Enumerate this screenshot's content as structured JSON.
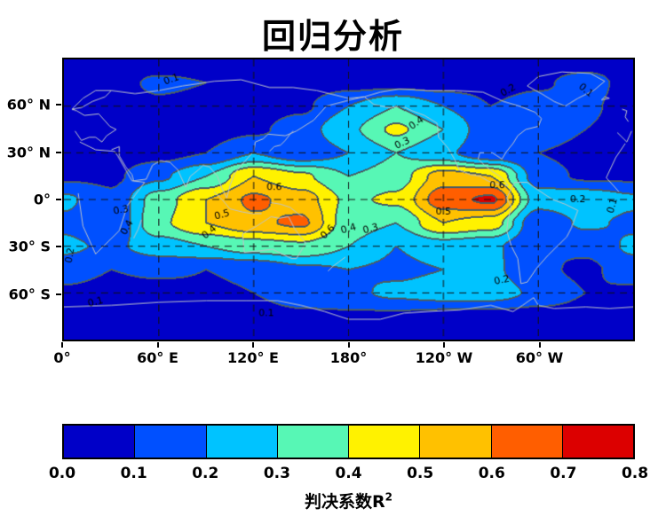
{
  "chart_data": {
    "type": "heatmap",
    "subtype": "filled-contour-map",
    "title": "回归分析",
    "projection": "equirectangular",
    "lon_range": [
      0,
      360
    ],
    "lat_range": [
      -90,
      90
    ],
    "grid_dashed": true,
    "xtick_labels": [
      "0°",
      "60° E",
      "120° E",
      "180°",
      "120° W",
      "60° W"
    ],
    "xtick_lons": [
      0,
      60,
      120,
      180,
      240,
      300
    ],
    "ytick_labels": [
      "60° N",
      "30° N",
      "0°",
      "30° S",
      "60° S"
    ],
    "ytick_lats": [
      60,
      30,
      0,
      -30,
      -60
    ],
    "levels": [
      0,
      0.1,
      0.2,
      0.3,
      0.4,
      0.5,
      0.6,
      0.7,
      0.8
    ],
    "palette": [
      "#0000c8",
      "#0050ff",
      "#00c3ff",
      "#57f7b5",
      "#fff200",
      "#ffc100",
      "#ff5e00",
      "#dc0000"
    ],
    "contour_line_color": "#4b5f64",
    "coastline_color": "#bec3c8",
    "grid": {
      "lons": [
        0,
        30,
        60,
        90,
        120,
        150,
        180,
        210,
        240,
        270,
        300,
        330,
        360
      ],
      "lats": [
        90,
        75,
        60,
        45,
        30,
        15,
        0,
        -15,
        -30,
        -45,
        -60,
        -75,
        -90
      ],
      "values": [
        [
          0.03,
          0.03,
          0.03,
          0.03,
          0.03,
          0.03,
          0.03,
          0.03,
          0.03,
          0.03,
          0.03,
          0.03,
          0.03
        ],
        [
          0.05,
          0.06,
          0.12,
          0.1,
          0.05,
          0.05,
          0.06,
          0.06,
          0.05,
          0.06,
          0.08,
          0.15,
          0.05
        ],
        [
          0.05,
          0.05,
          0.08,
          0.06,
          0.05,
          0.08,
          0.2,
          0.3,
          0.2,
          0.1,
          0.15,
          0.12,
          0.05
        ],
        [
          0.05,
          0.05,
          0.05,
          0.05,
          0.08,
          0.15,
          0.28,
          0.42,
          0.3,
          0.12,
          0.18,
          0.1,
          0.05
        ],
        [
          0.05,
          0.05,
          0.06,
          0.1,
          0.2,
          0.12,
          0.2,
          0.3,
          0.22,
          0.12,
          0.1,
          0.06,
          0.05
        ],
        [
          0.08,
          0.08,
          0.18,
          0.3,
          0.5,
          0.42,
          0.3,
          0.35,
          0.55,
          0.5,
          0.15,
          0.08,
          0.08
        ],
        [
          0.22,
          0.12,
          0.35,
          0.5,
          0.62,
          0.55,
          0.38,
          0.42,
          0.66,
          0.72,
          0.25,
          0.28,
          0.22
        ],
        [
          0.18,
          0.1,
          0.38,
          0.5,
          0.58,
          0.62,
          0.35,
          0.3,
          0.5,
          0.45,
          0.12,
          0.22,
          0.18
        ],
        [
          0.22,
          0.18,
          0.25,
          0.3,
          0.35,
          0.38,
          0.3,
          0.2,
          0.25,
          0.22,
          0.1,
          0.12,
          0.22
        ],
        [
          0.15,
          0.1,
          0.12,
          0.1,
          0.12,
          0.18,
          0.2,
          0.18,
          0.2,
          0.22,
          0.12,
          0.08,
          0.15
        ],
        [
          0.08,
          0.06,
          0.06,
          0.08,
          0.1,
          0.15,
          0.18,
          0.22,
          0.25,
          0.25,
          0.18,
          0.1,
          0.08
        ],
        [
          0.05,
          0.05,
          0.05,
          0.05,
          0.06,
          0.08,
          0.08,
          0.08,
          0.06,
          0.06,
          0.05,
          0.05,
          0.05
        ],
        [
          0.04,
          0.04,
          0.04,
          0.04,
          0.04,
          0.04,
          0.04,
          0.04,
          0.04,
          0.04,
          0.04,
          0.04,
          0.04
        ]
      ]
    },
    "contour_labels": [
      {
        "text": "0.1",
        "lon": 68,
        "lat": 77,
        "rot": -20
      },
      {
        "text": "0.2",
        "lon": 281,
        "lat": 70,
        "rot": -30
      },
      {
        "text": "0.1",
        "lon": 330,
        "lat": 70,
        "rot": 40
      },
      {
        "text": "0.4",
        "lon": 223,
        "lat": 49,
        "rot": -35
      },
      {
        "text": "0.3",
        "lon": 214,
        "lat": 36,
        "rot": -25
      },
      {
        "text": "0.6",
        "lon": 133,
        "lat": 8,
        "rot": 0
      },
      {
        "text": "0.5",
        "lon": 100,
        "lat": -10,
        "rot": -15
      },
      {
        "text": "0.4",
        "lon": 92,
        "lat": -21,
        "rot": -40
      },
      {
        "text": "0.3",
        "lon": 36,
        "lat": -7,
        "rot": -10
      },
      {
        "text": "0.4",
        "lon": 40,
        "lat": -18,
        "rot": -60
      },
      {
        "text": "0.6",
        "lon": 167,
        "lat": -21,
        "rot": -45
      },
      {
        "text": "0.4",
        "lon": 180,
        "lat": -19,
        "rot": -15
      },
      {
        "text": "0.3",
        "lon": 194,
        "lat": -19,
        "rot": -15
      },
      {
        "text": "0.6",
        "lon": 274,
        "lat": 9,
        "rot": 0
      },
      {
        "text": "0.5",
        "lon": 240,
        "lat": -8,
        "rot": 0
      },
      {
        "text": "0.2",
        "lon": 277,
        "lat": -52,
        "rot": -12
      },
      {
        "text": "0.2",
        "lon": 325,
        "lat": 0,
        "rot": 0
      },
      {
        "text": "0.1",
        "lon": 347,
        "lat": -4,
        "rot": -75
      },
      {
        "text": "0.2",
        "lon": 4,
        "lat": -36,
        "rot": -80
      },
      {
        "text": "0.1",
        "lon": 20,
        "lat": -66,
        "rot": -15
      },
      {
        "text": "0.1",
        "lon": 128,
        "lat": -73,
        "rot": 0
      }
    ],
    "coastlines": [
      [
        [
          355,
          36
        ],
        [
          10,
          37
        ],
        [
          20,
          32
        ],
        [
          32,
          31
        ],
        [
          34,
          28
        ],
        [
          43,
          12
        ],
        [
          51,
          11
        ],
        [
          40,
          -4
        ],
        [
          35,
          -20
        ],
        [
          20,
          -35
        ],
        [
          12,
          -17
        ],
        [
          9,
          4
        ],
        [
          351,
          5
        ],
        [
          343,
          14
        ],
        [
          349,
          27
        ],
        [
          355,
          36
        ]
      ],
      [
        [
          350,
          43
        ],
        [
          356,
          37
        ],
        [
          359,
          44
        ],
        [
          7,
          44
        ],
        [
          11,
          38
        ],
        [
          16,
          40
        ],
        [
          20,
          40
        ],
        [
          24,
          37
        ],
        [
          27,
          41
        ],
        [
          33,
          45
        ],
        [
          29,
          47
        ],
        [
          22,
          55
        ],
        [
          13,
          54
        ],
        [
          8,
          57
        ],
        [
          5,
          58
        ],
        [
          359,
          51
        ]
      ],
      [
        [
          357,
          50
        ],
        [
          355,
          53
        ],
        [
          356,
          57
        ],
        [
          353,
          58
        ]
      ],
      [
        [
          5,
          58
        ],
        [
          11,
          59
        ],
        [
          18,
          63
        ],
        [
          26,
          66
        ],
        [
          30,
          70
        ],
        [
          20,
          70
        ],
        [
          12,
          65
        ],
        [
          5,
          58
        ]
      ],
      [
        [
          30,
          70
        ],
        [
          45,
          68
        ],
        [
          60,
          70
        ],
        [
          75,
          73
        ],
        [
          95,
          76
        ],
        [
          112,
          77
        ],
        [
          130,
          72
        ],
        [
          145,
          72
        ],
        [
          160,
          70
        ],
        [
          172,
          67
        ],
        [
          180,
          65
        ],
        [
          190,
          66
        ],
        [
          181,
          64
        ],
        [
          166,
          60
        ],
        [
          158,
          51
        ],
        [
          147,
          44
        ],
        [
          140,
          41
        ],
        [
          129,
          42
        ],
        [
          126,
          39
        ],
        [
          121,
          37
        ],
        [
          120,
          31
        ],
        [
          113,
          23
        ],
        [
          108,
          17
        ],
        [
          105,
          9
        ],
        [
          103,
          1
        ],
        [
          100,
          7
        ],
        [
          97,
          15
        ],
        [
          92,
          21
        ],
        [
          88,
          22
        ],
        [
          85,
          19
        ],
        [
          80,
          15
        ],
        [
          77,
          8
        ],
        [
          72,
          19
        ],
        [
          67,
          24
        ],
        [
          61,
          25
        ],
        [
          56,
          22
        ],
        [
          52,
          13
        ],
        [
          44,
          12
        ],
        [
          43,
          16
        ],
        [
          39,
          21
        ],
        [
          35,
          28
        ],
        [
          35,
          34
        ],
        [
          30,
          32
        ]
      ],
      [
        [
          130,
          31
        ],
        [
          133,
          34
        ],
        [
          137,
          35
        ],
        [
          140,
          38
        ],
        [
          143,
          42
        ],
        [
          145,
          44
        ]
      ],
      [
        [
          95,
          5
        ],
        [
          100,
          0
        ],
        [
          105,
          -6
        ],
        [
          113,
          -8
        ],
        [
          119,
          -9
        ],
        [
          125,
          -9
        ]
      ],
      [
        [
          131,
          -2
        ],
        [
          137,
          -3
        ],
        [
          143,
          -5
        ],
        [
          148,
          -9
        ],
        [
          151,
          -11
        ]
      ],
      [
        [
          113,
          -22
        ],
        [
          114,
          -34
        ],
        [
          124,
          -33
        ],
        [
          132,
          -32
        ],
        [
          138,
          -35
        ],
        [
          144,
          -38
        ],
        [
          147,
          -38
        ],
        [
          153,
          -28
        ],
        [
          146,
          -19
        ],
        [
          142,
          -11
        ],
        [
          136,
          -12
        ],
        [
          131,
          -11
        ],
        [
          125,
          -15
        ],
        [
          122,
          -17
        ],
        [
          113,
          -22
        ]
      ],
      [
        [
          167,
          -46
        ],
        [
          170,
          -43
        ],
        [
          174,
          -40
        ],
        [
          178,
          -37
        ]
      ],
      [
        [
          190,
          66
        ],
        [
          196,
          61
        ],
        [
          206,
          59
        ],
        [
          214,
          60
        ],
        [
          220,
          57
        ],
        [
          228,
          54
        ],
        [
          236,
          49
        ],
        [
          237,
          40
        ],
        [
          243,
          33
        ],
        [
          247,
          26
        ],
        [
          250,
          19
        ],
        [
          257,
          16
        ],
        [
          263,
          15
        ],
        [
          268,
          12
        ],
        [
          273,
          10
        ],
        [
          278,
          9
        ],
        [
          281,
          9
        ],
        [
          277,
          14
        ],
        [
          271,
          18
        ],
        [
          266,
          22
        ],
        [
          262,
          26
        ],
        [
          263,
          30
        ],
        [
          271,
          30
        ],
        [
          277,
          26
        ],
        [
          280,
          31
        ],
        [
          284,
          36
        ],
        [
          287,
          41
        ],
        [
          292,
          45
        ],
        [
          300,
          47
        ],
        [
          302,
          52
        ],
        [
          298,
          56
        ],
        [
          288,
          60
        ],
        [
          278,
          63
        ],
        [
          265,
          69
        ],
        [
          248,
          70
        ],
        [
          230,
          70
        ],
        [
          212,
          71
        ],
        [
          200,
          69
        ],
        [
          190,
          66
        ]
      ],
      [
        [
          285,
          11
        ],
        [
          293,
          11
        ],
        [
          300,
          6
        ],
        [
          309,
          0
        ],
        [
          317,
          -3
        ],
        [
          325,
          -7
        ],
        [
          321,
          -18
        ],
        [
          318,
          -24
        ],
        [
          312,
          -30
        ],
        [
          306,
          -36
        ],
        [
          299,
          -44
        ],
        [
          293,
          -53
        ],
        [
          289,
          -54
        ],
        [
          288,
          -46
        ],
        [
          287,
          -38
        ],
        [
          283,
          -30
        ],
        [
          280,
          -20
        ],
        [
          281,
          -12
        ],
        [
          283,
          -5
        ],
        [
          280,
          1
        ],
        [
          285,
          11
        ]
      ],
      [
        [
          317,
          60
        ],
        [
          325,
          65
        ],
        [
          335,
          70
        ],
        [
          342,
          76
        ],
        [
          333,
          81
        ],
        [
          315,
          82
        ],
        [
          300,
          79
        ],
        [
          293,
          73
        ],
        [
          302,
          68
        ],
        [
          310,
          63
        ],
        [
          317,
          60
        ]
      ],
      [
        [
          340,
          64
        ],
        [
          345,
          65
        ],
        [
          342,
          66
        ],
        [
          340,
          64
        ]
      ],
      [
        [
          44,
          -25
        ],
        [
          47,
          -19
        ],
        [
          49,
          -13
        ]
      ],
      [
        [
          0,
          -69
        ],
        [
          30,
          -68
        ],
        [
          60,
          -66
        ],
        [
          90,
          -65
        ],
        [
          115,
          -65
        ],
        [
          135,
          -65
        ],
        [
          150,
          -68
        ],
        [
          165,
          -72
        ],
        [
          180,
          -77
        ],
        [
          200,
          -77
        ],
        [
          215,
          -73
        ],
        [
          230,
          -72
        ],
        [
          250,
          -71
        ],
        [
          270,
          -68
        ],
        [
          284,
          -72
        ],
        [
          290,
          -68
        ],
        [
          297,
          -63
        ],
        [
          300,
          -68
        ],
        [
          310,
          -70
        ],
        [
          330,
          -69
        ],
        [
          345,
          -70
        ],
        [
          360,
          -69
        ]
      ]
    ],
    "colorbar": {
      "tick_labels": [
        "0.0",
        "0.1",
        "0.2",
        "0.3",
        "0.4",
        "0.5",
        "0.6",
        "0.7",
        "0.8"
      ],
      "label_base": "判决系数R",
      "label_sup": "2"
    }
  }
}
